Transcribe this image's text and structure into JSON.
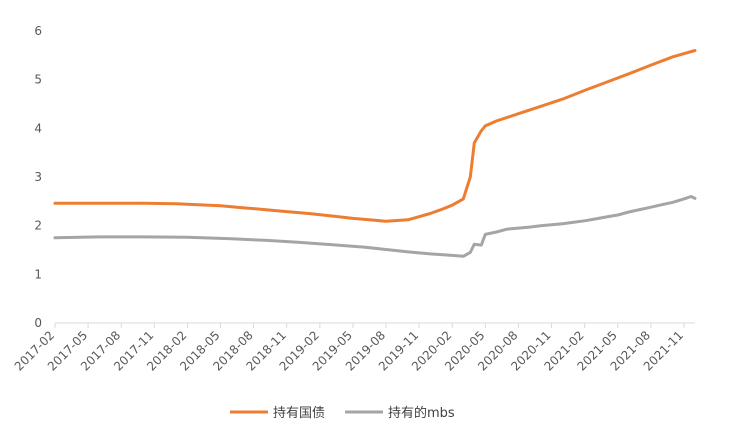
{
  "chart_data": {
    "type": "line",
    "ylim": [
      0,
      6
    ],
    "yticks": [
      "0",
      "1",
      "2",
      "3",
      "4",
      "5",
      "6"
    ],
    "x_tick_labels": [
      "2017-02",
      "2017-05",
      "2017-08",
      "2017-11",
      "2018-02",
      "2018-05",
      "2018-08",
      "2018-11",
      "2019-02",
      "2019-05",
      "2019-08",
      "2019-11",
      "2020-02",
      "2020-05",
      "2020-08",
      "2020-11",
      "2021-02",
      "2021-05",
      "2021-08",
      "2021-11"
    ],
    "x_start": "2017-02",
    "x_end": "2021-12",
    "grid": false,
    "legend_position": "bottom",
    "series": [
      {
        "name": "持有国债",
        "color": "#ED7D31",
        "points": [
          [
            "2017-02",
            2.46
          ],
          [
            "2017-06",
            2.46
          ],
          [
            "2017-10",
            2.46
          ],
          [
            "2018-01",
            2.45
          ],
          [
            "2018-03",
            2.43
          ],
          [
            "2018-05",
            2.41
          ],
          [
            "2018-07",
            2.37
          ],
          [
            "2018-09",
            2.33
          ],
          [
            "2018-11",
            2.29
          ],
          [
            "2019-01",
            2.25
          ],
          [
            "2019-03",
            2.2
          ],
          [
            "2019-05",
            2.15
          ],
          [
            "2019-07",
            2.11
          ],
          [
            "2019-08",
            2.09
          ],
          [
            "2019-10",
            2.12
          ],
          [
            "2019-12",
            2.25
          ],
          [
            "2020-01",
            2.33
          ],
          [
            "2020-02",
            2.42
          ],
          [
            "2020-03",
            2.55
          ],
          [
            "2020-03-20",
            3.0
          ],
          [
            "2020-04",
            3.7
          ],
          [
            "2020-04-20",
            3.95
          ],
          [
            "2020-05",
            4.05
          ],
          [
            "2020-06",
            4.15
          ],
          [
            "2020-08",
            4.3
          ],
          [
            "2020-10",
            4.45
          ],
          [
            "2020-12",
            4.6
          ],
          [
            "2021-02",
            4.78
          ],
          [
            "2021-04",
            4.95
          ],
          [
            "2021-06",
            5.12
          ],
          [
            "2021-08",
            5.3
          ],
          [
            "2021-10",
            5.47
          ],
          [
            "2021-12",
            5.6
          ]
        ]
      },
      {
        "name": "持有的mbs",
        "color": "#A5A5A5",
        "points": [
          [
            "2017-02",
            1.75
          ],
          [
            "2017-06",
            1.77
          ],
          [
            "2017-10",
            1.77
          ],
          [
            "2018-02",
            1.76
          ],
          [
            "2018-06",
            1.73
          ],
          [
            "2018-09",
            1.7
          ],
          [
            "2018-12",
            1.66
          ],
          [
            "2019-03",
            1.61
          ],
          [
            "2019-06",
            1.56
          ],
          [
            "2019-08",
            1.51
          ],
          [
            "2019-10",
            1.46
          ],
          [
            "2019-12",
            1.42
          ],
          [
            "2020-02",
            1.39
          ],
          [
            "2020-03",
            1.37
          ],
          [
            "2020-03-20",
            1.45
          ],
          [
            "2020-04",
            1.62
          ],
          [
            "2020-04-20",
            1.6
          ],
          [
            "2020-05",
            1.82
          ],
          [
            "2020-06",
            1.87
          ],
          [
            "2020-07",
            1.93
          ],
          [
            "2020-08",
            1.95
          ],
          [
            "2020-09",
            1.97
          ],
          [
            "2020-10",
            2.0
          ],
          [
            "2020-11",
            2.02
          ],
          [
            "2020-12",
            2.04
          ],
          [
            "2021-01",
            2.07
          ],
          [
            "2021-02",
            2.1
          ],
          [
            "2021-03",
            2.14
          ],
          [
            "2021-04",
            2.18
          ],
          [
            "2021-05",
            2.22
          ],
          [
            "2021-06",
            2.28
          ],
          [
            "2021-07",
            2.33
          ],
          [
            "2021-08",
            2.38
          ],
          [
            "2021-09",
            2.43
          ],
          [
            "2021-10",
            2.48
          ],
          [
            "2021-11",
            2.55
          ],
          [
            "2021-11-20",
            2.6
          ],
          [
            "2021-12",
            2.56
          ]
        ]
      }
    ]
  }
}
